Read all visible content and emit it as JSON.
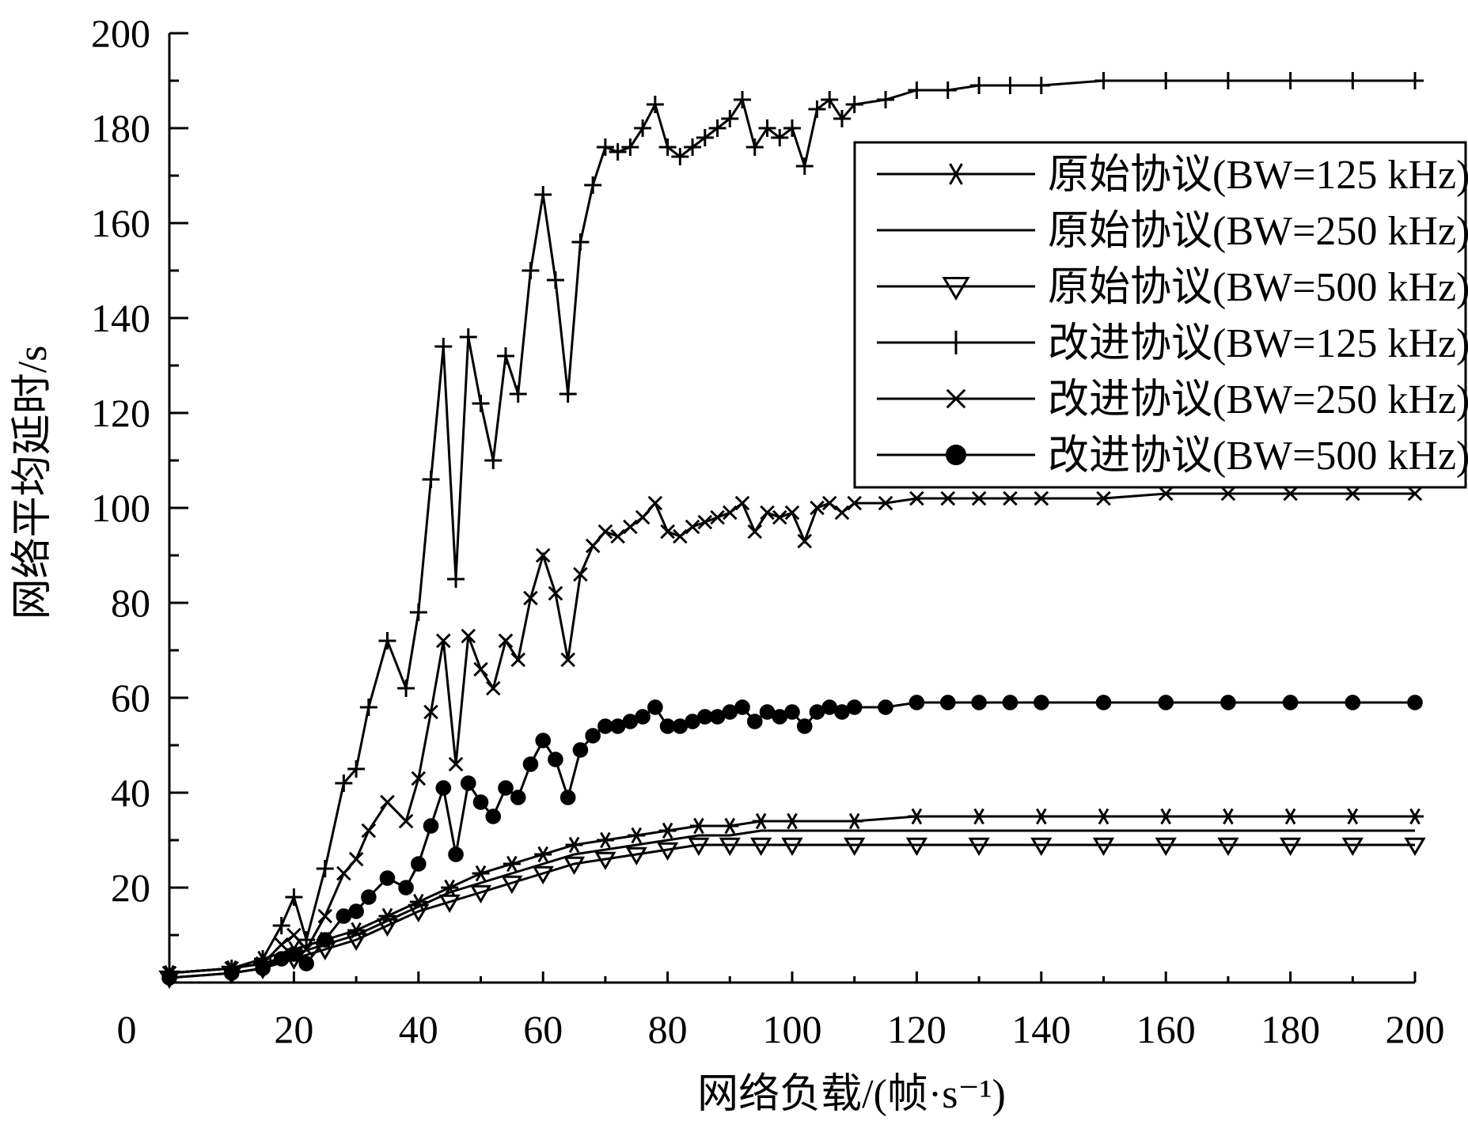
{
  "chart_data": {
    "type": "line",
    "title": "",
    "xlabel": "网络负载/(帧·s⁻¹)",
    "ylabel": "网络平均延时/s",
    "xlim": [
      0,
      200
    ],
    "ylim": [
      0,
      200
    ],
    "xticks": [
      "0",
      "20",
      "40",
      "60",
      "80",
      "100",
      "120",
      "140",
      "160",
      "180",
      "200"
    ],
    "yticks": [
      "20",
      "40",
      "60",
      "80",
      "100",
      "120",
      "140",
      "160",
      "180",
      "200"
    ],
    "grid": false,
    "legend_position": "top-right",
    "series": [
      {
        "name": "原始协议(BW=125 kHz)",
        "marker": "asterisk",
        "x": [
          0,
          10,
          15,
          20,
          25,
          30,
          35,
          40,
          45,
          50,
          55,
          60,
          65,
          70,
          75,
          80,
          85,
          90,
          95,
          100,
          110,
          120,
          130,
          140,
          150,
          160,
          170,
          180,
          190,
          200
        ],
        "y": [
          2,
          3,
          5,
          7,
          9,
          11,
          14,
          17,
          20,
          23,
          25,
          27,
          29,
          30,
          31,
          32,
          33,
          33,
          34,
          34,
          34,
          35,
          35,
          35,
          35,
          35,
          35,
          35,
          35,
          35
        ]
      },
      {
        "name": "原始协议(BW=250 kHz)",
        "marker": "none",
        "x": [
          0,
          10,
          15,
          20,
          25,
          30,
          35,
          40,
          45,
          50,
          55,
          60,
          65,
          70,
          75,
          80,
          85,
          90,
          95,
          100,
          110,
          120,
          130,
          140,
          150,
          160,
          170,
          180,
          190,
          200
        ],
        "y": [
          2,
          3,
          4,
          6,
          8,
          10,
          13,
          16,
          19,
          21,
          23,
          25,
          27,
          28,
          29,
          30,
          31,
          31,
          32,
          32,
          32,
          32,
          32,
          32,
          32,
          32,
          32,
          32,
          32,
          32
        ]
      },
      {
        "name": "原始协议(BW=500 kHz)",
        "marker": "triangle-down",
        "x": [
          0,
          10,
          15,
          20,
          25,
          30,
          35,
          40,
          45,
          50,
          55,
          60,
          65,
          70,
          75,
          80,
          85,
          90,
          95,
          100,
          110,
          120,
          130,
          140,
          150,
          160,
          170,
          180,
          190,
          200
        ],
        "y": [
          1,
          2,
          3,
          5,
          7,
          9,
          12,
          15,
          17,
          19,
          21,
          23,
          25,
          26,
          27,
          28,
          29,
          29,
          29,
          29,
          29,
          29,
          29,
          29,
          29,
          29,
          29,
          29,
          29,
          29
        ]
      },
      {
        "name": "改进协议(BW=125 kHz)",
        "marker": "plus",
        "x": [
          0,
          10,
          15,
          18,
          20,
          22,
          25,
          28,
          30,
          32,
          35,
          38,
          40,
          42,
          44,
          46,
          48,
          50,
          52,
          54,
          56,
          58,
          60,
          62,
          64,
          66,
          68,
          70,
          72,
          74,
          76,
          78,
          80,
          82,
          84,
          86,
          88,
          90,
          92,
          94,
          96,
          98,
          100,
          102,
          104,
          106,
          108,
          110,
          115,
          120,
          125,
          130,
          135,
          140,
          150,
          160,
          170,
          180,
          190,
          200
        ],
        "y": [
          2,
          3,
          5,
          12,
          18,
          9,
          24,
          42,
          45,
          58,
          72,
          62,
          78,
          106,
          134,
          85,
          136,
          122,
          110,
          132,
          124,
          150,
          166,
          148,
          124,
          156,
          168,
          176,
          175,
          176,
          180,
          185,
          176,
          174,
          176,
          178,
          180,
          182,
          186,
          176,
          180,
          178,
          180,
          172,
          184,
          186,
          182,
          185,
          186,
          188,
          188,
          189,
          189,
          189,
          190,
          190,
          190,
          190,
          190,
          190
        ]
      },
      {
        "name": "改进协议(BW=250 kHz)",
        "marker": "x",
        "x": [
          0,
          10,
          15,
          18,
          20,
          22,
          25,
          28,
          30,
          32,
          35,
          38,
          40,
          42,
          44,
          46,
          48,
          50,
          52,
          54,
          56,
          58,
          60,
          62,
          64,
          66,
          68,
          70,
          72,
          74,
          76,
          78,
          80,
          82,
          84,
          86,
          88,
          90,
          92,
          94,
          96,
          98,
          100,
          102,
          104,
          106,
          108,
          110,
          115,
          120,
          125,
          130,
          135,
          140,
          150,
          160,
          170,
          180,
          190,
          200
        ],
        "y": [
          2,
          3,
          4,
          8,
          10,
          7,
          14,
          23,
          26,
          32,
          38,
          34,
          43,
          57,
          72,
          46,
          73,
          66,
          62,
          72,
          68,
          81,
          90,
          82,
          68,
          86,
          92,
          95,
          94,
          96,
          98,
          101,
          95,
          94,
          96,
          97,
          98,
          99,
          101,
          95,
          99,
          98,
          99,
          93,
          100,
          101,
          99,
          101,
          101,
          102,
          102,
          102,
          102,
          102,
          102,
          103,
          103,
          103,
          103,
          103
        ]
      },
      {
        "name": "改进协议(BW=500 kHz)",
        "marker": "circle",
        "x": [
          0,
          10,
          15,
          18,
          20,
          22,
          25,
          28,
          30,
          32,
          35,
          38,
          40,
          42,
          44,
          46,
          48,
          50,
          52,
          54,
          56,
          58,
          60,
          62,
          64,
          66,
          68,
          70,
          72,
          74,
          76,
          78,
          80,
          82,
          84,
          86,
          88,
          90,
          92,
          94,
          96,
          98,
          100,
          102,
          104,
          106,
          108,
          110,
          115,
          120,
          125,
          130,
          135,
          140,
          150,
          160,
          170,
          180,
          190,
          200
        ],
        "y": [
          1,
          2,
          3,
          5,
          6,
          4,
          9,
          14,
          15,
          18,
          22,
          20,
          25,
          33,
          41,
          27,
          42,
          38,
          35,
          41,
          39,
          46,
          51,
          47,
          39,
          49,
          52,
          54,
          54,
          55,
          56,
          58,
          54,
          54,
          55,
          56,
          56,
          57,
          58,
          55,
          57,
          56,
          57,
          54,
          57,
          58,
          57,
          58,
          58,
          59,
          59,
          59,
          59,
          59,
          59,
          59,
          59,
          59,
          59,
          59
        ]
      }
    ]
  }
}
